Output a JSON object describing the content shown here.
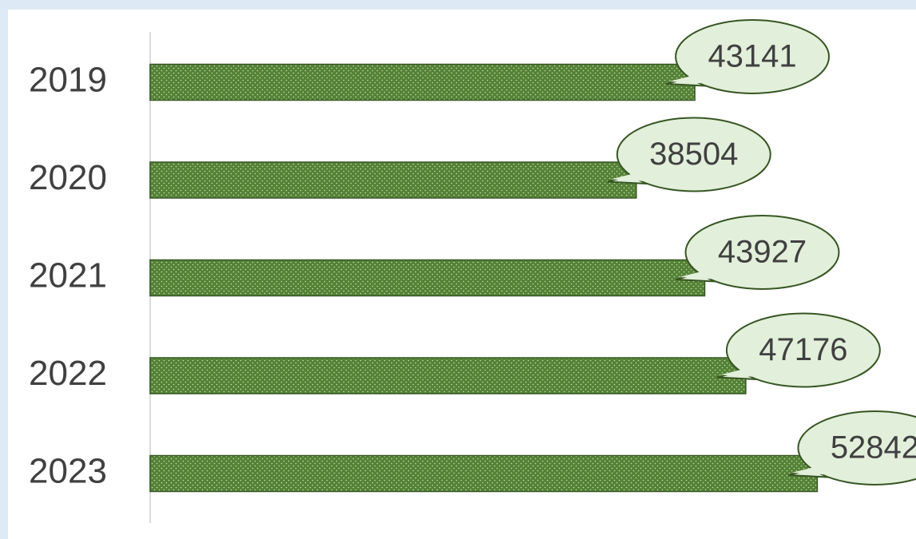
{
  "chart_data": {
    "type": "bar",
    "orientation": "horizontal",
    "categories": [
      "2019",
      "2020",
      "2021",
      "2022",
      "2023"
    ],
    "values": [
      43141,
      38504,
      43927,
      47176,
      52842
    ],
    "color": "#548235"
  }
}
